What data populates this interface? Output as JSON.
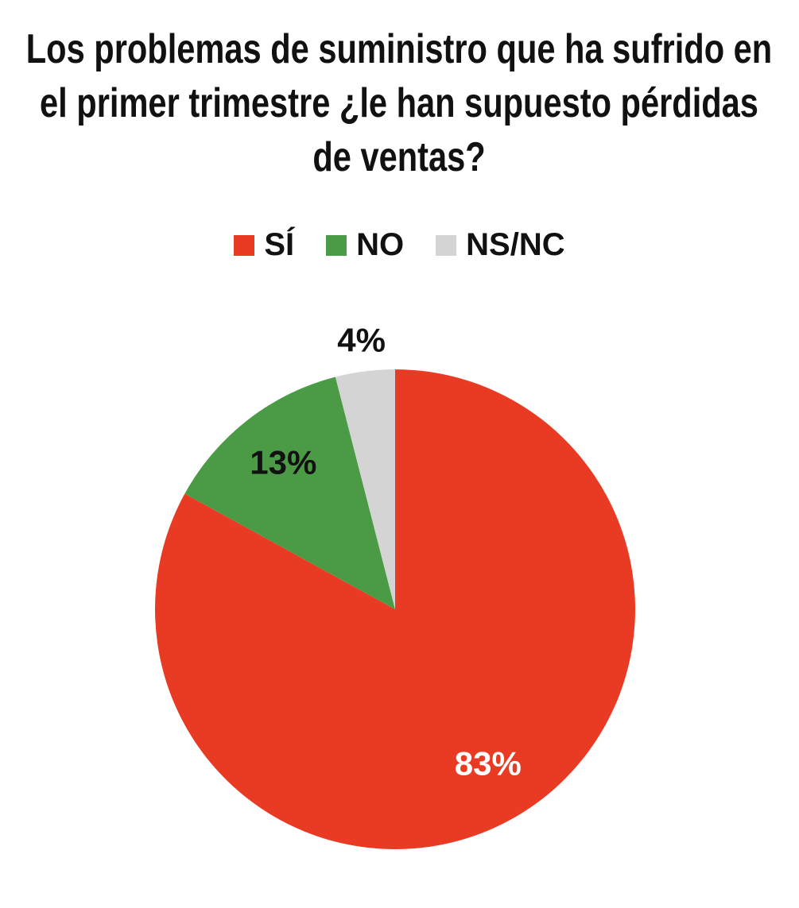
{
  "chart_data": {
    "type": "pie",
    "title": "Los problemas de suministro que ha sufrido en el primer trimestre ¿le han supuesto pérdidas de ventas?",
    "categories": [
      "SÍ",
      "NO",
      "NS/NC"
    ],
    "values": [
      83,
      13,
      4
    ],
    "value_labels": [
      "83%",
      "13%",
      "4%"
    ],
    "colors": [
      "#e93a23",
      "#4b9a45",
      "#d4d4d4"
    ],
    "legend": "top"
  }
}
